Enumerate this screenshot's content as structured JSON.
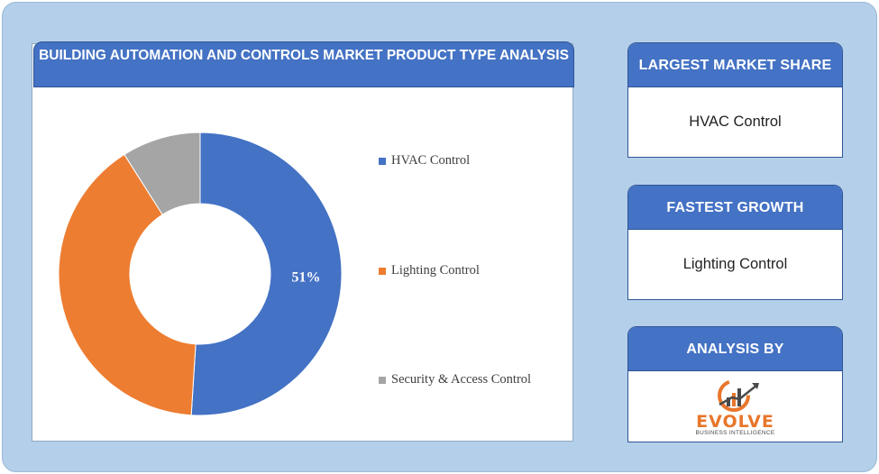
{
  "header": {
    "title": "BUILDING AUTOMATION AND CONTROLS MARKET PRODUCT TYPE ANALYSIS"
  },
  "chart_data": {
    "type": "pie",
    "donut": true,
    "categories": [
      "HVAC Control",
      "Lighting Control",
      "Security & Access Control"
    ],
    "values": [
      51,
      40,
      9
    ],
    "data_labels": [
      "51%",
      "",
      ""
    ],
    "colors": [
      "#4472c4",
      "#ed7d31",
      "#a5a5a5"
    ],
    "legend_position": "right"
  },
  "cards": [
    {
      "heading": "LARGEST MARKET SHARE",
      "value": "HVAC Control"
    },
    {
      "heading": "FASTEST GROWTH",
      "value": "Lighting Control"
    },
    {
      "heading": "ANALYSIS BY",
      "logo_text": "EVOLVE",
      "logo_subtext": "BUSINESS INTELLIGENCE"
    }
  ],
  "icons": {
    "logo": "evolve-logo-icon"
  }
}
